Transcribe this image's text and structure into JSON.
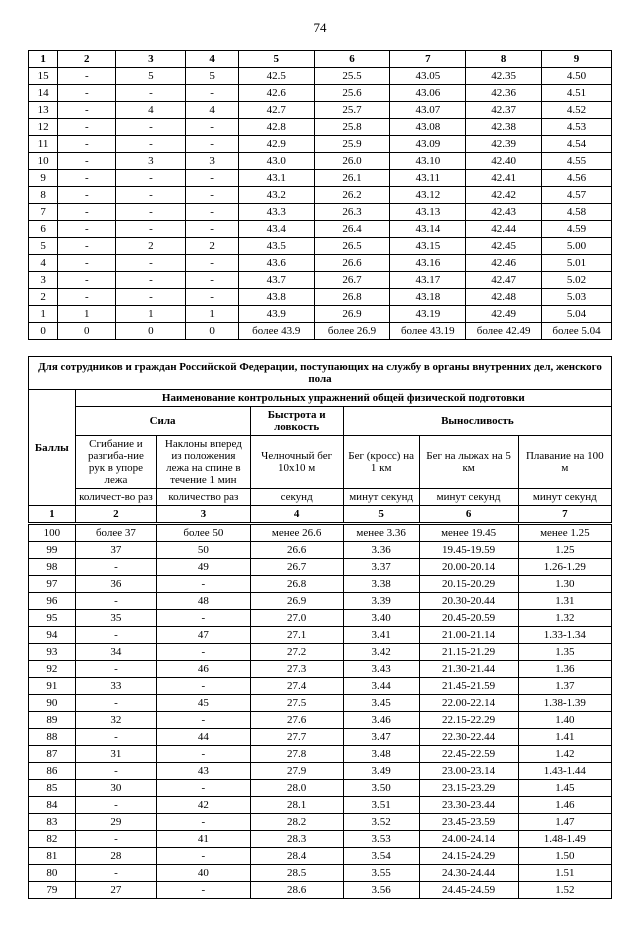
{
  "page_number": "74",
  "table1": {
    "header": [
      "1",
      "2",
      "3",
      "4",
      "5",
      "6",
      "7",
      "8",
      "9"
    ],
    "rows": [
      [
        "15",
        "-",
        "5",
        "5",
        "42.5",
        "25.5",
        "43.05",
        "42.35",
        "4.50"
      ],
      [
        "14",
        "-",
        "-",
        "-",
        "42.6",
        "25.6",
        "43.06",
        "42.36",
        "4.51"
      ],
      [
        "13",
        "-",
        "4",
        "4",
        "42.7",
        "25.7",
        "43.07",
        "42.37",
        "4.52"
      ],
      [
        "12",
        "-",
        "-",
        "-",
        "42.8",
        "25.8",
        "43.08",
        "42.38",
        "4.53"
      ],
      [
        "11",
        "-",
        "-",
        "-",
        "42.9",
        "25.9",
        "43.09",
        "42.39",
        "4.54"
      ],
      [
        "10",
        "-",
        "3",
        "3",
        "43.0",
        "26.0",
        "43.10",
        "42.40",
        "4.55"
      ],
      [
        "9",
        "-",
        "-",
        "-",
        "43.1",
        "26.1",
        "43.11",
        "42.41",
        "4.56"
      ],
      [
        "8",
        "-",
        "-",
        "-",
        "43.2",
        "26.2",
        "43.12",
        "42.42",
        "4.57"
      ],
      [
        "7",
        "-",
        "-",
        "-",
        "43.3",
        "26.3",
        "43.13",
        "42.43",
        "4.58"
      ],
      [
        "6",
        "-",
        "-",
        "-",
        "43.4",
        "26.4",
        "43.14",
        "42.44",
        "4.59"
      ],
      [
        "5",
        "-",
        "2",
        "2",
        "43.5",
        "26.5",
        "43.15",
        "42.45",
        "5.00"
      ],
      [
        "4",
        "-",
        "-",
        "-",
        "43.6",
        "26.6",
        "43.16",
        "42.46",
        "5.01"
      ],
      [
        "3",
        "-",
        "-",
        "-",
        "43.7",
        "26.7",
        "43.17",
        "42.47",
        "5.02"
      ],
      [
        "2",
        "-",
        "-",
        "-",
        "43.8",
        "26.8",
        "43.18",
        "42.48",
        "5.03"
      ],
      [
        "1",
        "1",
        "1",
        "1",
        "43.9",
        "26.9",
        "43.19",
        "42.49",
        "5.04"
      ],
      [
        "0",
        "0",
        "0",
        "0",
        "более 43.9",
        "более 26.9",
        "более 43.19",
        "более 42.49",
        "более 5.04"
      ]
    ]
  },
  "table2": {
    "title": "Для сотрудников и граждан Российской Федерации, поступающих на службу в органы внутренних дел, женского пола",
    "subtitle": "Наименование контрольных упражнений общей физической подготовки",
    "group_headers": {
      "bally": "Баллы",
      "sila": "Сила",
      "bystrota": "Быстрота и ловкость",
      "vynoslivost": "Выносливость"
    },
    "col_headers": [
      "Сгибание и разгиба-ние рук в упоре лежа",
      "Наклоны вперед из положения лежа на спине в течение 1 мин",
      "Челночный бег 10х10 м",
      "Бег (кросс) на 1 км",
      "Бег на лыжах на 5 км",
      "Плавание на 100 м"
    ],
    "unit_headers": [
      "количест-во раз",
      "количество раз",
      "секунд",
      "минут секунд",
      "минут секунд",
      "минут секунд"
    ],
    "num_header": [
      "1",
      "2",
      "3",
      "4",
      "5",
      "6",
      "7"
    ],
    "rows": [
      [
        "100",
        "более 37",
        "более 50",
        "менее 26.6",
        "менее 3.36",
        "менее 19.45",
        "менее 1.25"
      ],
      [
        "99",
        "37",
        "50",
        "26.6",
        "3.36",
        "19.45-19.59",
        "1.25"
      ],
      [
        "98",
        "-",
        "49",
        "26.7",
        "3.37",
        "20.00-20.14",
        "1.26-1.29"
      ],
      [
        "97",
        "36",
        "-",
        "26.8",
        "3.38",
        "20.15-20.29",
        "1.30"
      ],
      [
        "96",
        "-",
        "48",
        "26.9",
        "3.39",
        "20.30-20.44",
        "1.31"
      ],
      [
        "95",
        "35",
        "-",
        "27.0",
        "3.40",
        "20.45-20.59",
        "1.32"
      ],
      [
        "94",
        "-",
        "47",
        "27.1",
        "3.41",
        "21.00-21.14",
        "1.33-1.34"
      ],
      [
        "93",
        "34",
        "-",
        "27.2",
        "3.42",
        "21.15-21.29",
        "1.35"
      ],
      [
        "92",
        "-",
        "46",
        "27.3",
        "3.43",
        "21.30-21.44",
        "1.36"
      ],
      [
        "91",
        "33",
        "-",
        "27.4",
        "3.44",
        "21.45-21.59",
        "1.37"
      ],
      [
        "90",
        "-",
        "45",
        "27.5",
        "3.45",
        "22.00-22.14",
        "1.38-1.39"
      ],
      [
        "89",
        "32",
        "-",
        "27.6",
        "3.46",
        "22.15-22.29",
        "1.40"
      ],
      [
        "88",
        "-",
        "44",
        "27.7",
        "3.47",
        "22.30-22.44",
        "1.41"
      ],
      [
        "87",
        "31",
        "-",
        "27.8",
        "3.48",
        "22.45-22.59",
        "1.42"
      ],
      [
        "86",
        "-",
        "43",
        "27.9",
        "3.49",
        "23.00-23.14",
        "1.43-1.44"
      ],
      [
        "85",
        "30",
        "-",
        "28.0",
        "3.50",
        "23.15-23.29",
        "1.45"
      ],
      [
        "84",
        "-",
        "42",
        "28.1",
        "3.51",
        "23.30-23.44",
        "1.46"
      ],
      [
        "83",
        "29",
        "-",
        "28.2",
        "3.52",
        "23.45-23.59",
        "1.47"
      ],
      [
        "82",
        "-",
        "41",
        "28.3",
        "3.53",
        "24.00-24.14",
        "1.48-1.49"
      ],
      [
        "81",
        "28",
        "-",
        "28.4",
        "3.54",
        "24.15-24.29",
        "1.50"
      ],
      [
        "80",
        "-",
        "40",
        "28.5",
        "3.55",
        "24.30-24.44",
        "1.51"
      ],
      [
        "79",
        "27",
        "-",
        "28.6",
        "3.56",
        "24.45-24.59",
        "1.52"
      ]
    ]
  }
}
